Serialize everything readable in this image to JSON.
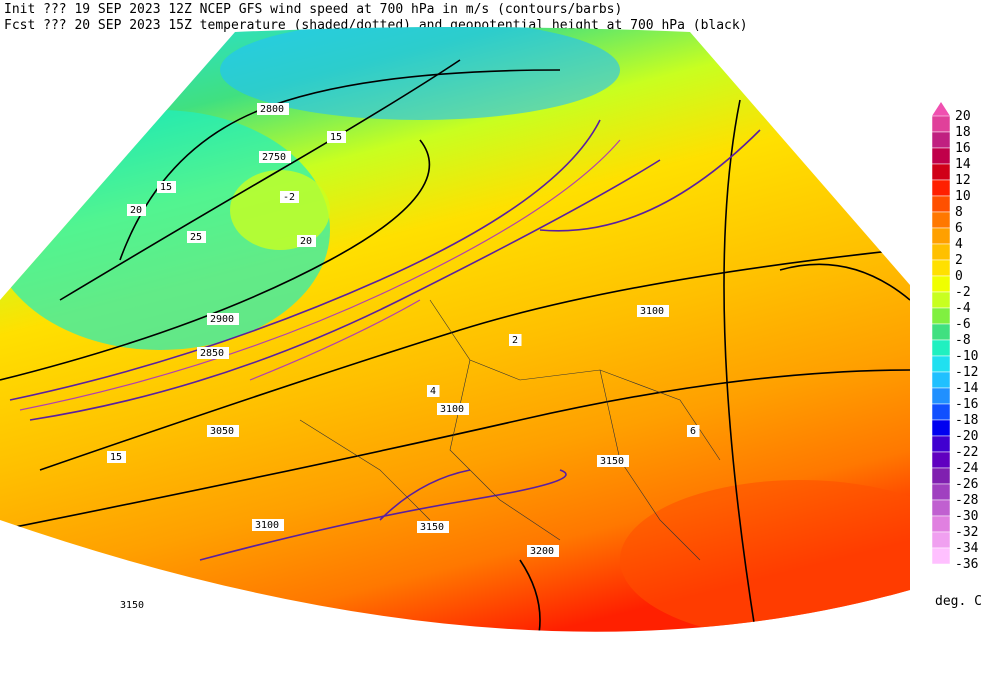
{
  "header": {
    "line1": "Init  ??? 19 SEP 2023 12Z  NCEP GFS wind speed at 700 hPa in m/s (contours/barbs)",
    "line2": "Fcst ??? 20 SEP 2023 15Z  temperature (shaded/dotted) and geopotential height at 700 hPa (black)"
  },
  "colorbar": {
    "labels": [
      20,
      18,
      16,
      14,
      12,
      10,
      8,
      6,
      4,
      2,
      0,
      -2,
      -4,
      -6,
      -8,
      -10,
      -12,
      -14,
      -16,
      -18,
      -20,
      -22,
      -24,
      -26,
      -28,
      -30,
      -32,
      -34,
      -36
    ],
    "colors": [
      "#f050b0",
      "#e0409a",
      "#c02080",
      "#c0004a",
      "#d00018",
      "#ff2000",
      "#ff5000",
      "#ff7800",
      "#ffa000",
      "#ffc000",
      "#ffe000",
      "#f0ff00",
      "#c8ff20",
      "#80f040",
      "#40e080",
      "#20f0c0",
      "#20e0f0",
      "#20c0ff",
      "#2090ff",
      "#1050ff",
      "#0000f0",
      "#4000d0",
      "#6000c0",
      "#8020b0",
      "#a040c0",
      "#c060d0",
      "#e080e0",
      "#f0a0f0",
      "#ffc0ff"
    ],
    "unit": "deg. C"
  },
  "map": {
    "labels": [
      "2900",
      "2850",
      "2800",
      "2750",
      "3050",
      "3100",
      "3100",
      "3150",
      "3150",
      "3200",
      "3150",
      "3100",
      "15",
      "20",
      "25",
      "15",
      "20",
      "15",
      "2",
      "4",
      "6",
      "-2"
    ]
  }
}
